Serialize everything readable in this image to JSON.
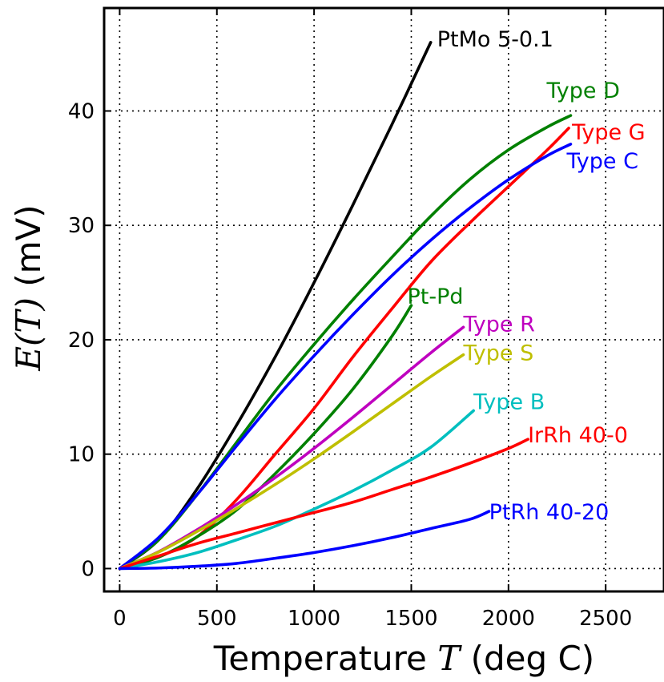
{
  "chart_data": {
    "type": "line",
    "title": "",
    "xlabel": {
      "prefix": "Temperature ",
      "symbol": "T",
      "suffix": " (deg C)"
    },
    "ylabel": {
      "prefix": "",
      "symbol": "E(T)",
      "suffix": " (mV)"
    },
    "xlim": [
      -80,
      2800
    ],
    "ylim": [
      -2,
      49
    ],
    "xticks": [
      0,
      500,
      1000,
      1500,
      2000,
      2500
    ],
    "yticks": [
      0,
      10,
      20,
      30,
      40
    ],
    "grid": true,
    "legend": "none",
    "series": [
      {
        "name": "PtMo 5-0.1",
        "color": "#000000",
        "x": [
          0,
          200,
          400,
          600,
          800,
          1000,
          1200,
          1400,
          1600
        ],
        "y": [
          0,
          2.5,
          7.0,
          12.5,
          18.5,
          25.0,
          31.8,
          38.8,
          46.0
        ]
      },
      {
        "name": "Type D",
        "color": "#008000",
        "x": [
          0,
          200,
          400,
          600,
          800,
          1000,
          1200,
          1400,
          1600,
          1800,
          2000,
          2200,
          2320
        ],
        "y": [
          0,
          2.5,
          6.5,
          11.0,
          15.5,
          19.6,
          23.5,
          27.2,
          30.8,
          34.0,
          36.6,
          38.6,
          39.6
        ]
      },
      {
        "name": "Type G",
        "color": "#ff0000",
        "x": [
          0,
          200,
          400,
          600,
          800,
          1000,
          1200,
          1400,
          1600,
          1800,
          2000,
          2200,
          2310
        ],
        "y": [
          0,
          1.0,
          2.8,
          6.0,
          10.0,
          14.0,
          18.5,
          22.7,
          26.8,
          30.2,
          33.4,
          36.6,
          38.5
        ]
      },
      {
        "name": "Type C",
        "color": "#0000ff",
        "x": [
          0,
          200,
          400,
          600,
          800,
          1000,
          1200,
          1400,
          1600,
          1800,
          2000,
          2200,
          2320
        ],
        "y": [
          0,
          2.7,
          6.5,
          10.7,
          14.8,
          18.6,
          22.2,
          25.6,
          28.7,
          31.5,
          34.0,
          36.1,
          37.1
        ]
      },
      {
        "name": "Pt-Pd",
        "color": "#008000",
        "x": [
          0,
          200,
          400,
          600,
          800,
          1000,
          1200,
          1400,
          1500
        ],
        "y": [
          0,
          1.0,
          2.8,
          5.1,
          8.3,
          11.8,
          15.7,
          20.3,
          23.0
        ]
      },
      {
        "name": "Type R",
        "color": "#bf00bf",
        "x": [
          0,
          200,
          400,
          600,
          800,
          1000,
          1200,
          1400,
          1600,
          1768
        ],
        "y": [
          0,
          1.47,
          3.41,
          5.58,
          7.95,
          10.51,
          13.23,
          16.04,
          18.85,
          21.1
        ]
      },
      {
        "name": "Type S",
        "color": "#bfbf00",
        "x": [
          0,
          200,
          400,
          600,
          800,
          1000,
          1200,
          1400,
          1600,
          1768
        ],
        "y": [
          0,
          1.44,
          3.26,
          5.24,
          7.35,
          9.59,
          11.95,
          14.37,
          16.78,
          18.69
        ]
      },
      {
        "name": "Type B",
        "color": "#00bfbf",
        "x": [
          0,
          200,
          400,
          600,
          800,
          1000,
          1200,
          1400,
          1600,
          1820
        ],
        "y": [
          0,
          0.6,
          1.4,
          2.5,
          3.7,
          5.2,
          6.8,
          8.6,
          10.6,
          13.8
        ]
      },
      {
        "name": "IrRh 40-0",
        "color": "#ff0000",
        "x": [
          0,
          200,
          400,
          600,
          800,
          1000,
          1200,
          1400,
          1600,
          1800,
          2000,
          2100
        ],
        "y": [
          0,
          1.1,
          2.2,
          3.1,
          4.0,
          4.9,
          5.8,
          6.9,
          8.0,
          9.2,
          10.5,
          11.3
        ]
      },
      {
        "name": "PtRh 40-20",
        "color": "#0000ff",
        "x": [
          0,
          200,
          400,
          600,
          800,
          1000,
          1200,
          1400,
          1600,
          1800,
          1900
        ],
        "y": [
          0,
          0.05,
          0.2,
          0.45,
          0.9,
          1.4,
          2.0,
          2.7,
          3.5,
          4.3,
          5.0
        ]
      }
    ]
  }
}
